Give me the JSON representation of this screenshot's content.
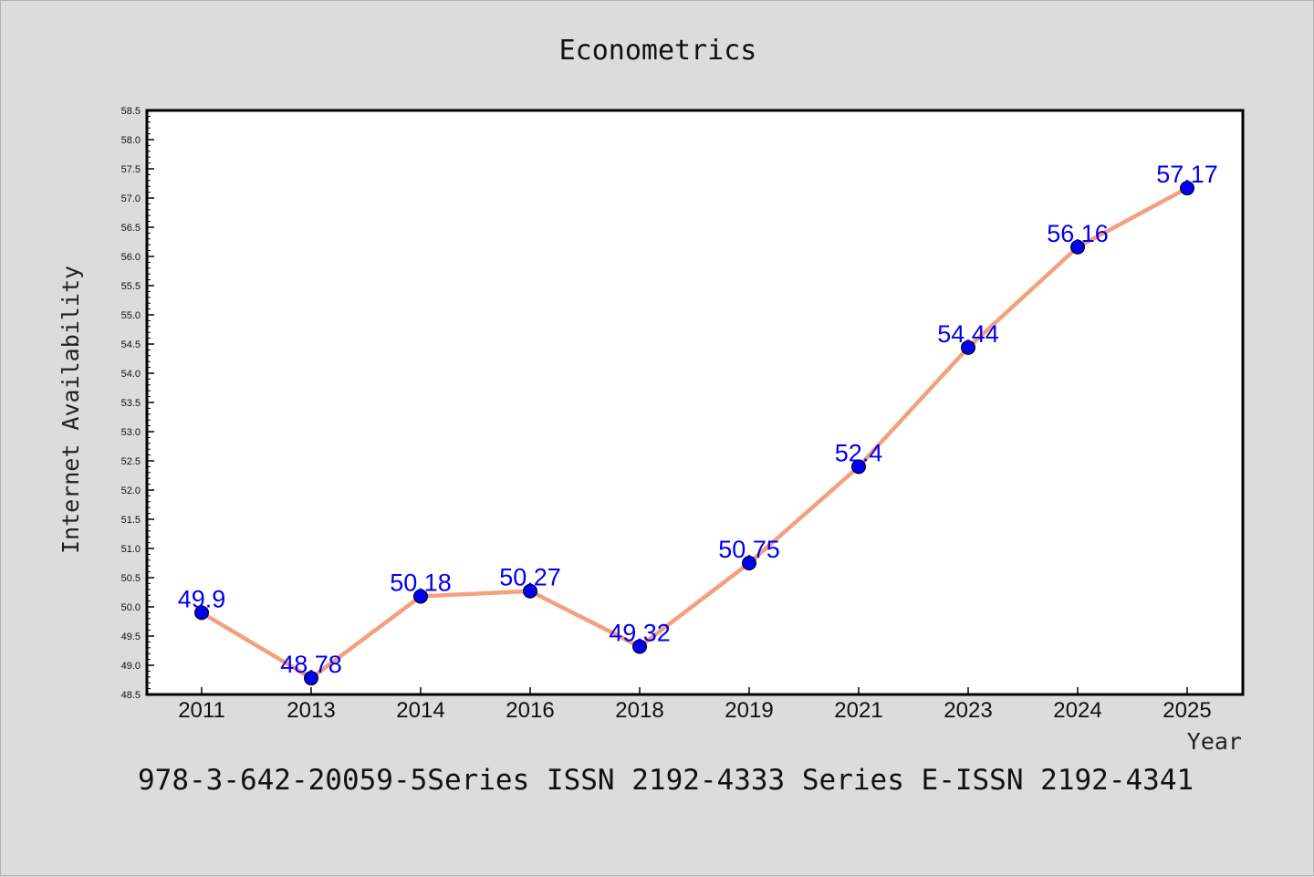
{
  "chart_data": {
    "type": "line",
    "title": "Econometrics",
    "xlabel": "Year",
    "ylabel": "Internet Availability",
    "categories": [
      "2011",
      "2013",
      "2014",
      "2016",
      "2018",
      "2019",
      "2021",
      "2023",
      "2024",
      "2025"
    ],
    "series": [
      {
        "values": [
          49.9,
          48.78,
          50.18,
          50.27,
          49.32,
          50.75,
          52.4,
          54.44,
          56.16,
          57.17
        ],
        "data_labels": [
          "49.9",
          "48.78",
          "50.18",
          "50.27",
          "49.32",
          "50.75",
          "52.4",
          "54.44",
          "56.16",
          "57.17"
        ]
      }
    ],
    "ylim": [
      48.5,
      58.5
    ],
    "yticks": [
      "48.5",
      "49.0",
      "49.5",
      "50.0",
      "50.5",
      "51.0",
      "51.5",
      "52.0",
      "52.5",
      "53.0",
      "53.5",
      "54.0",
      "54.5",
      "55.0",
      "55.5",
      "56.0",
      "56.5",
      "57.0",
      "57.5",
      "58.0",
      "58.5"
    ],
    "grid": false,
    "colors": {
      "line": "#f4a07e",
      "marker": "#0000ee",
      "label": "#0000ee",
      "background": "#dcdcdc",
      "plot_background": "#ffffff"
    }
  },
  "footer": {
    "text": "978-3-642-20059-5Series ISSN 2192-4333 Series E-ISSN 2192-4341"
  }
}
